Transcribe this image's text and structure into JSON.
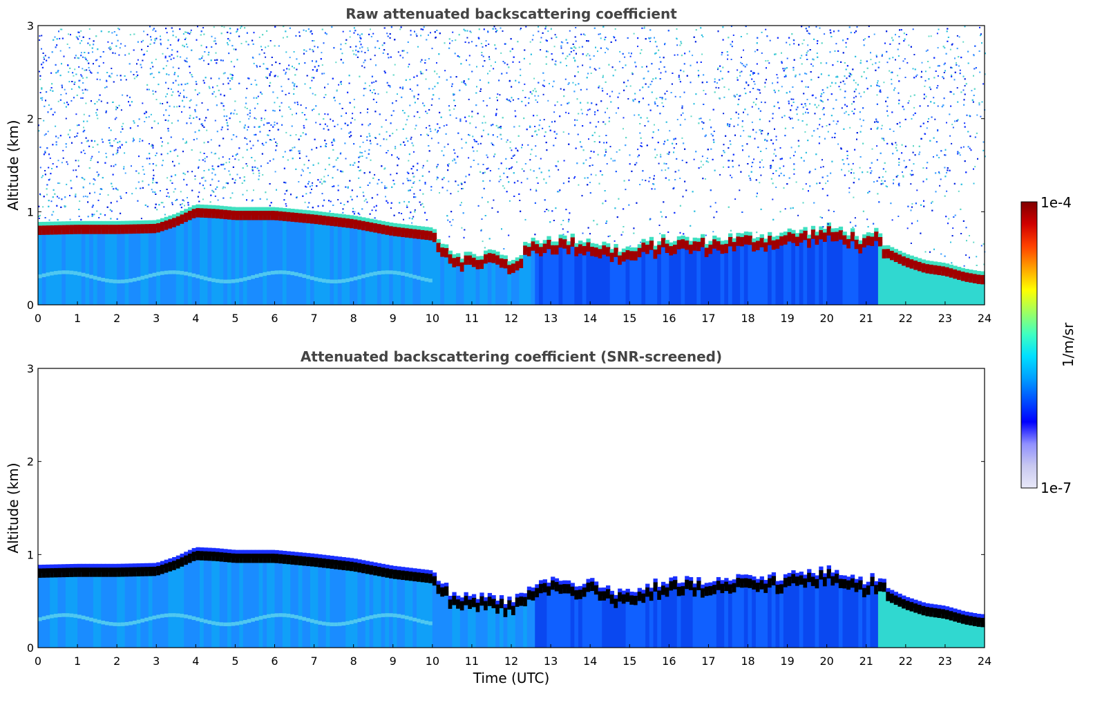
{
  "chart_data": [
    {
      "type": "heatmap",
      "title": "Raw attenuated backscattering coefficient",
      "xlabel": "",
      "ylabel": "Altitude (km)",
      "xlim": [
        0,
        24
      ],
      "ylim": [
        0,
        3
      ],
      "xticks": [
        "0",
        "1",
        "2",
        "3",
        "4",
        "5",
        "6",
        "7",
        "8",
        "9",
        "10",
        "11",
        "12",
        "13",
        "14",
        "15",
        "16",
        "17",
        "18",
        "19",
        "20",
        "21",
        "22",
        "23",
        "24"
      ],
      "yticks": [
        "0",
        "1",
        "2",
        "3"
      ],
      "noisy": true,
      "layer_top_km": [
        [
          0,
          0.86
        ],
        [
          1,
          0.87
        ],
        [
          2,
          0.87
        ],
        [
          3,
          0.88
        ],
        [
          3.5,
          0.95
        ],
        [
          4,
          1.05
        ],
        [
          4.5,
          1.04
        ],
        [
          5,
          1.02
        ],
        [
          6,
          1.02
        ],
        [
          7,
          0.98
        ],
        [
          8,
          0.93
        ],
        [
          9,
          0.85
        ],
        [
          10,
          0.8
        ],
        [
          10.5,
          0.55
        ],
        [
          11,
          0.5
        ],
        [
          11.5,
          0.55
        ],
        [
          12,
          0.45
        ],
        [
          12.5,
          0.65
        ],
        [
          13,
          0.7
        ],
        [
          14,
          0.67
        ],
        [
          14.5,
          0.6
        ],
        [
          15,
          0.57
        ],
        [
          15.5,
          0.65
        ],
        [
          16,
          0.68
        ],
        [
          17,
          0.68
        ],
        [
          18,
          0.72
        ],
        [
          19,
          0.75
        ],
        [
          20,
          0.8
        ],
        [
          20.5,
          0.78
        ],
        [
          21,
          0.68
        ],
        [
          21.3,
          0.75
        ],
        [
          21.5,
          0.62
        ],
        [
          22,
          0.52
        ],
        [
          22.5,
          0.45
        ],
        [
          23,
          0.42
        ],
        [
          23.5,
          0.36
        ],
        [
          23.9,
          0.33
        ]
      ]
    },
    {
      "type": "heatmap",
      "title": "Attenuated backscattering coefficient (SNR-screened)",
      "xlabel": "Time (UTC)",
      "ylabel": "Altitude (km)",
      "xlim": [
        0,
        24
      ],
      "ylim": [
        0,
        3
      ],
      "xticks": [
        "0",
        "1",
        "2",
        "3",
        "4",
        "5",
        "6",
        "7",
        "8",
        "9",
        "10",
        "11",
        "12",
        "13",
        "14",
        "15",
        "16",
        "17",
        "18",
        "19",
        "20",
        "21",
        "22",
        "23",
        "24"
      ],
      "yticks": [
        "0",
        "1",
        "2",
        "3"
      ],
      "noisy": false,
      "layer_top_km": [
        [
          0,
          0.86
        ],
        [
          1,
          0.87
        ],
        [
          2,
          0.87
        ],
        [
          3,
          0.88
        ],
        [
          3.5,
          0.95
        ],
        [
          4,
          1.05
        ],
        [
          4.5,
          1.04
        ],
        [
          5,
          1.02
        ],
        [
          6,
          1.02
        ],
        [
          7,
          0.98
        ],
        [
          8,
          0.93
        ],
        [
          9,
          0.85
        ],
        [
          10,
          0.8
        ],
        [
          10.5,
          0.55
        ],
        [
          11,
          0.5
        ],
        [
          11.5,
          0.55
        ],
        [
          12,
          0.45
        ],
        [
          12.5,
          0.65
        ],
        [
          13,
          0.7
        ],
        [
          14,
          0.67
        ],
        [
          14.5,
          0.6
        ],
        [
          15,
          0.57
        ],
        [
          15.5,
          0.65
        ],
        [
          16,
          0.68
        ],
        [
          17,
          0.68
        ],
        [
          18,
          0.72
        ],
        [
          19,
          0.75
        ],
        [
          20,
          0.8
        ],
        [
          20.5,
          0.78
        ],
        [
          21,
          0.68
        ],
        [
          21.3,
          0.75
        ],
        [
          21.5,
          0.62
        ],
        [
          22,
          0.52
        ],
        [
          22.5,
          0.45
        ],
        [
          23,
          0.42
        ],
        [
          23.5,
          0.36
        ],
        [
          23.9,
          0.33
        ]
      ]
    }
  ],
  "colorbar": {
    "label": "1/m/sr",
    "max_label": "1e-4",
    "min_label": "1e-7",
    "colormap": "jet",
    "colors": [
      "#e8e8f8",
      "#c8c8f0",
      "#9090ff",
      "#0000ff",
      "#0050ff",
      "#00a0ff",
      "#00e0ff",
      "#40ffc0",
      "#a0ff60",
      "#ffff00",
      "#ffa000",
      "#ff4000",
      "#d00000",
      "#800000"
    ]
  }
}
